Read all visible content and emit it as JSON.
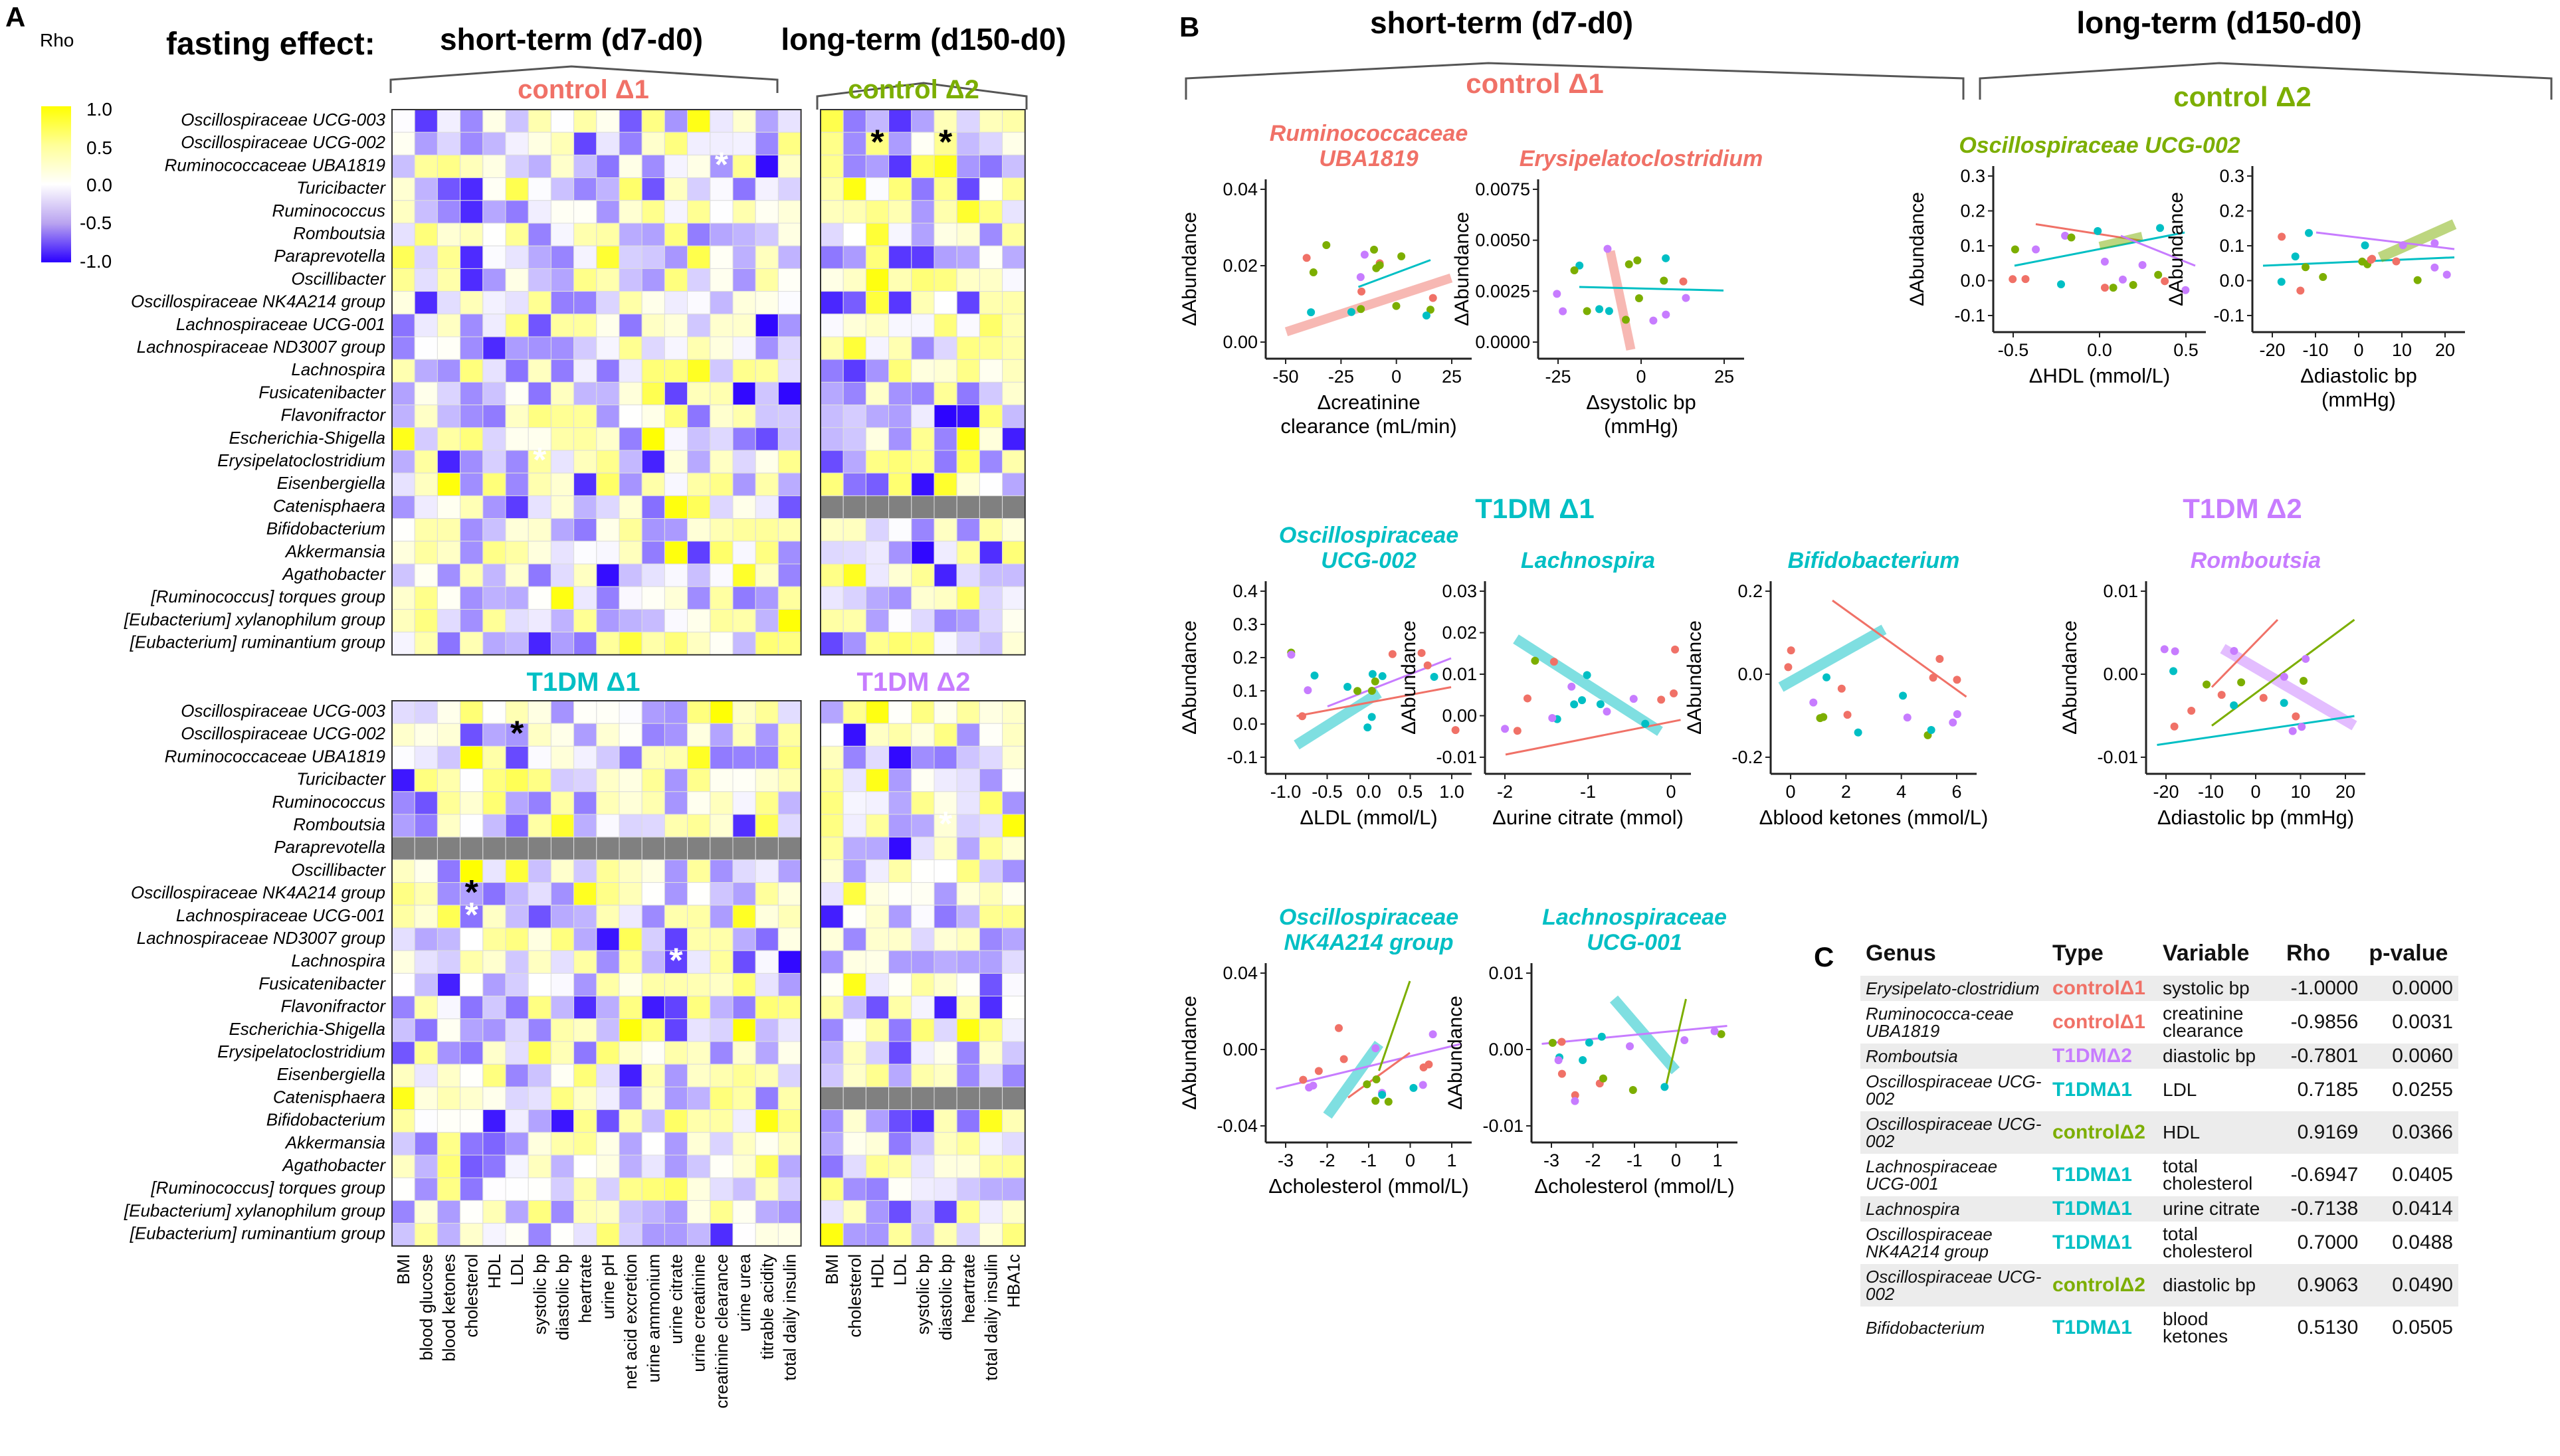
{
  "panel_labels": {
    "A": "A",
    "B": "B",
    "C": "C"
  },
  "colors": {
    "control1": "#f07167",
    "control2": "#7cae00",
    "t1dm1": "#00bfc4",
    "t1dm2": "#c77cff",
    "missing": "#808080"
  },
  "panel_a": {
    "title": "fasting effect:",
    "short_term": "short-term (d7-d0)",
    "long_term": "long-term (d150-d0)",
    "legend": {
      "title": "Rho",
      "ticks": [
        "1.0",
        "0.5",
        "0.0",
        "-0.5",
        "-1.0"
      ],
      "values": [
        1.0,
        0.5,
        0.0,
        -0.5,
        -1.0
      ]
    },
    "groups": {
      "control1": "control Δ1",
      "control2": "control Δ2",
      "t1dm1": "T1DM Δ1",
      "t1dm2": "T1DM Δ2"
    },
    "genera_top": [
      "Oscillospiraceae UCG-003",
      "Oscillospiraceae UCG-002",
      "Ruminococcaceae UBA1819",
      "Turicibacter",
      "Ruminococcus",
      "Romboutsia",
      "Paraprevotella",
      "Oscillibacter",
      "Oscillospiraceae NK4A214 group",
      "Lachnospiraceae UCG-001",
      "Lachnospiraceae ND3007 group",
      "Lachnospira",
      "Fusicatenibacter",
      "Flavonifractor",
      "Escherichia-Shigella",
      "Erysipelatoclostridium",
      "Eisenbergiella",
      "Catenisphaera",
      "Bifidobacterium",
      "Akkermansia",
      "Agathobacter",
      "[Ruminococcus] torques group",
      "[Eubacterium] xylanophilum group",
      "[Eubacterium] ruminantium group"
    ],
    "genera_bottom": [
      "Oscillospiraceae UCG-003",
      "Oscillospiraceae UCG-002",
      "Ruminococcaceae UBA1819",
      "Turicibacter",
      "Ruminococcus",
      "Romboutsia",
      "Paraprevotella",
      "Oscillibacter",
      "Oscillospiraceae NK4A214 group",
      "Lachnospiraceae UCG-001",
      "Lachnospiraceae ND3007 group",
      "Lachnospira",
      "Fusicatenibacter",
      "Flavonifractor",
      "Escherichia-Shigella",
      "Erysipelatoclostridium",
      "Eisenbergiella",
      "Catenisphaera",
      "Bifidobacterium",
      "Akkermansia",
      "Agathobacter",
      "[Ruminococcus] torques group",
      "[Eubacterium] xylanophilum group",
      "[Eubacterium] ruminantium group"
    ],
    "vars_short": [
      "BMI",
      "blood glucose",
      "blood ketones",
      "cholesterol",
      "HDL",
      "LDL",
      "systolic bp",
      "diastolic bp",
      "heartrate",
      "urine pH",
      "net acid excretion",
      "urine ammonium",
      "urine citrate",
      "urine creatinine",
      "creatinine clearance",
      "urine urea",
      "titrable acidity",
      "total daily insulin"
    ],
    "vars_long": [
      "BMI",
      "cholesterol",
      "HDL",
      "LDL",
      "systolic bp",
      "diastolic bp",
      "heartrate",
      "total daily insulin",
      "HBA1c"
    ],
    "asterisk": "*"
  },
  "panel_b": {
    "short_term": "short-term (d7-d0)",
    "long_term": "long-term (d150-d0)",
    "group_titles": {
      "control1": "control Δ1",
      "control2": "control Δ2",
      "t1dm1": "T1DM Δ1",
      "t1dm2": "T1DM Δ2"
    },
    "y_label": "ΔAbundance",
    "plots": [
      {
        "title": [
          "Ruminococcaceae",
          "UBA1819"
        ],
        "group": "control1",
        "xlabel": [
          "Δcreatinine",
          "clearance (mL/min)"
        ],
        "xticks": [
          "-50",
          "-25",
          "0",
          "25"
        ],
        "yticks": [
          "0.04",
          "0.02",
          "0.00"
        ]
      },
      {
        "title": [
          "Erysipelatoclostridium"
        ],
        "group": "control1",
        "xlabel": [
          "Δsystolic bp",
          "(mmHg)"
        ],
        "xticks": [
          "-25",
          "0",
          "25"
        ],
        "yticks": [
          "0.0075",
          "0.0050",
          "0.0025",
          "0.0000"
        ]
      },
      {
        "title": [
          "Oscillospiraceae UCG-002"
        ],
        "group": "control2",
        "xlabel": [
          "ΔHDL (mmol/L)"
        ],
        "xticks": [
          "-0.5",
          "0.0",
          "0.5"
        ],
        "yticks": [
          "0.3",
          "0.2",
          "0.1",
          "0.0",
          "-0.1"
        ]
      },
      {
        "title": [
          ""
        ],
        "group": "control2",
        "xlabel": [
          "Δdiastolic bp",
          "(mmHg)"
        ],
        "xticks": [
          "-20",
          "-10",
          "0",
          "10",
          "20"
        ],
        "yticks": [
          "0.3",
          "0.2",
          "0.1",
          "0.0",
          "-0.1"
        ]
      },
      {
        "title": [
          "Oscillospiraceae",
          "UCG-002"
        ],
        "group": "t1dm1",
        "xlabel": [
          "ΔLDL (mmol/L)"
        ],
        "xticks": [
          "-1.0",
          "-0.5",
          "0.0",
          "0.5",
          "1.0"
        ],
        "yticks": [
          "0.4",
          "0.3",
          "0.2",
          "0.1",
          "0.0",
          "-0.1"
        ]
      },
      {
        "title": [
          "Lachnospira"
        ],
        "group": "t1dm1",
        "xlabel": [
          "Δurine citrate (mmol)"
        ],
        "xticks": [
          "-2",
          "-1",
          "0"
        ],
        "yticks": [
          "0.03",
          "0.02",
          "0.01",
          "0.00",
          "-0.01"
        ]
      },
      {
        "title": [
          "Bifidobacterium"
        ],
        "group": "t1dm1",
        "xlabel": [
          "Δblood ketones (mmol/L)"
        ],
        "xticks": [
          "0",
          "2",
          "4",
          "6"
        ],
        "yticks": [
          "0.2",
          "0.0",
          "-0.2"
        ]
      },
      {
        "title": [
          "Romboutsia"
        ],
        "group": "t1dm2",
        "xlabel": [
          "Δdiastolic bp (mmHg)"
        ],
        "xticks": [
          "-20",
          "-10",
          "0",
          "10",
          "20"
        ],
        "yticks": [
          "0.01",
          "0.00",
          "-0.01"
        ]
      },
      {
        "title": [
          "Oscillospiraceae",
          "NK4A214 group"
        ],
        "group": "t1dm1",
        "xlabel": [
          "Δcholesterol (mmol/L)"
        ],
        "xticks": [
          "-3",
          "-2",
          "-1",
          "0",
          "1"
        ],
        "yticks": [
          "0.04",
          "0.00",
          "-0.04"
        ]
      },
      {
        "title": [
          "Lachnospiraceae",
          "UCG-001"
        ],
        "group": "t1dm1",
        "xlabel": [
          "Δcholesterol (mmol/L)"
        ],
        "xticks": [
          "-3",
          "-2",
          "-1",
          "0",
          "1"
        ],
        "yticks": [
          "0.01",
          "0.00",
          "-0.01"
        ]
      }
    ]
  },
  "panel_c": {
    "headers": [
      "Genus",
      "Type",
      "Variable",
      "Rho",
      "p-value"
    ],
    "rows": [
      {
        "genus": "Erysipelato-clostridium",
        "type": "controlΔ1",
        "type_color": "#f07167",
        "variable": "systolic bp",
        "rho": "-1.0000",
        "p": "0.0000"
      },
      {
        "genus": "Ruminococca-ceae UBA1819",
        "type": "controlΔ1",
        "type_color": "#f07167",
        "variable": "creatinine clearance",
        "rho": "-0.9856",
        "p": "0.0031"
      },
      {
        "genus": "Romboutsia",
        "type": "T1DMΔ2",
        "type_color": "#c77cff",
        "variable": "diastolic bp",
        "rho": "-0.7801",
        "p": "0.0060"
      },
      {
        "genus": "Oscillospiraceae UCG-002",
        "type": "T1DMΔ1",
        "type_color": "#00bfc4",
        "variable": "LDL",
        "rho": "0.7185",
        "p": "0.0255"
      },
      {
        "genus": "Oscillospiraceae UCG-002",
        "type": "controlΔ2",
        "type_color": "#7cae00",
        "variable": "HDL",
        "rho": "0.9169",
        "p": "0.0366"
      },
      {
        "genus": "Lachnospiraceae UCG-001",
        "type": "T1DMΔ1",
        "type_color": "#00bfc4",
        "variable": "total cholesterol",
        "rho": "-0.6947",
        "p": "0.0405"
      },
      {
        "genus": "Lachnospira",
        "type": "T1DMΔ1",
        "type_color": "#00bfc4",
        "variable": "urine citrate",
        "rho": "-0.7138",
        "p": "0.0414"
      },
      {
        "genus": "Oscillospiraceae NK4A214 group",
        "type": "T1DMΔ1",
        "type_color": "#00bfc4",
        "variable": "total cholesterol",
        "rho": "0.7000",
        "p": "0.0488"
      },
      {
        "genus": "Oscillospiraceae UCG-002",
        "type": "controlΔ2",
        "type_color": "#7cae00",
        "variable": "diastolic bp",
        "rho": "0.9063",
        "p": "0.0490"
      },
      {
        "genus": "Bifidobacterium",
        "type": "T1DMΔ1",
        "type_color": "#00bfc4",
        "variable": "blood ketones",
        "rho": "0.5130",
        "p": "0.0505"
      }
    ]
  }
}
